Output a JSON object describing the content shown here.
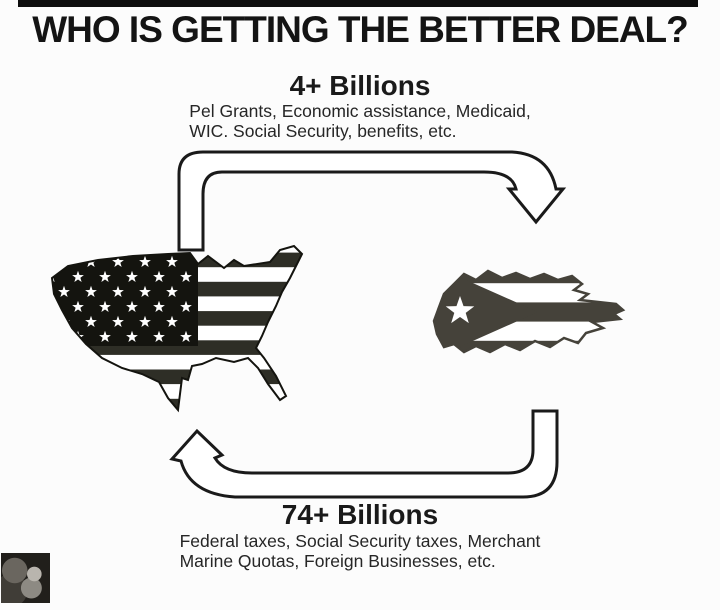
{
  "page": {
    "title": "WHO IS GETTING THE BETTER DEAL?"
  },
  "flow_us_to_pr": {
    "amount": "4+ Billions",
    "detail_line1": "Pel Grants, Economic assistance, Medicaid,",
    "detail_line2": "WIC. Social Security, benefits, etc."
  },
  "flow_pr_to_us": {
    "amount": "74+ Billions",
    "detail_line1": "Federal taxes, Social Security taxes, Merchant",
    "detail_line2": "Marine Quotas, Foreign Businesses, etc."
  },
  "icons": {
    "us_map": "usa-map-american-flag-icon",
    "pr_map": "puerto-rico-map-flag-icon",
    "arrow_top": "arrow-us-to-pr",
    "arrow_bottom": "arrow-pr-to-us",
    "watermark": "face-photo-watermark"
  },
  "colors": {
    "background": "#fcfcfc",
    "ink": "#141414",
    "us_flag_black": "#14140f",
    "us_stripe": "#2e2e26",
    "pr_flag_gray": "#45423a"
  }
}
